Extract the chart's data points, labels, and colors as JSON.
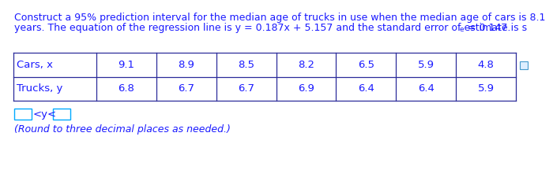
{
  "title_line1": "Construct a 95% prediction interval for the median age of trucks in use when the median age of cars is 8.1",
  "title_line2_main": "years. The equation of the regression line is y = 0.187x + 5.157 and the standard error of estimate is s",
  "title_line2_sub": "e",
  "title_line2_end": " = 0.147.",
  "row1_label": "Cars, x",
  "row2_label": "Trucks, y",
  "cars_x": [
    "9.1",
    "8.9",
    "8.5",
    "8.2",
    "6.5",
    "5.9",
    "4.8"
  ],
  "trucks_y": [
    "6.8",
    "6.7",
    "6.7",
    "6.9",
    "6.4",
    "6.4",
    "5.9"
  ],
  "answer_label": "<y<",
  "round_note": "(Round to three decimal places as needed.)",
  "bg_color": "#ffffff",
  "text_color": "#1a1aff",
  "table_border_color": "#2b2b9a",
  "title_color": "#1a1aff",
  "font_size_title": 9.0,
  "font_size_table": 9.5,
  "font_size_note": 9.0,
  "box_color": "#00aaff"
}
